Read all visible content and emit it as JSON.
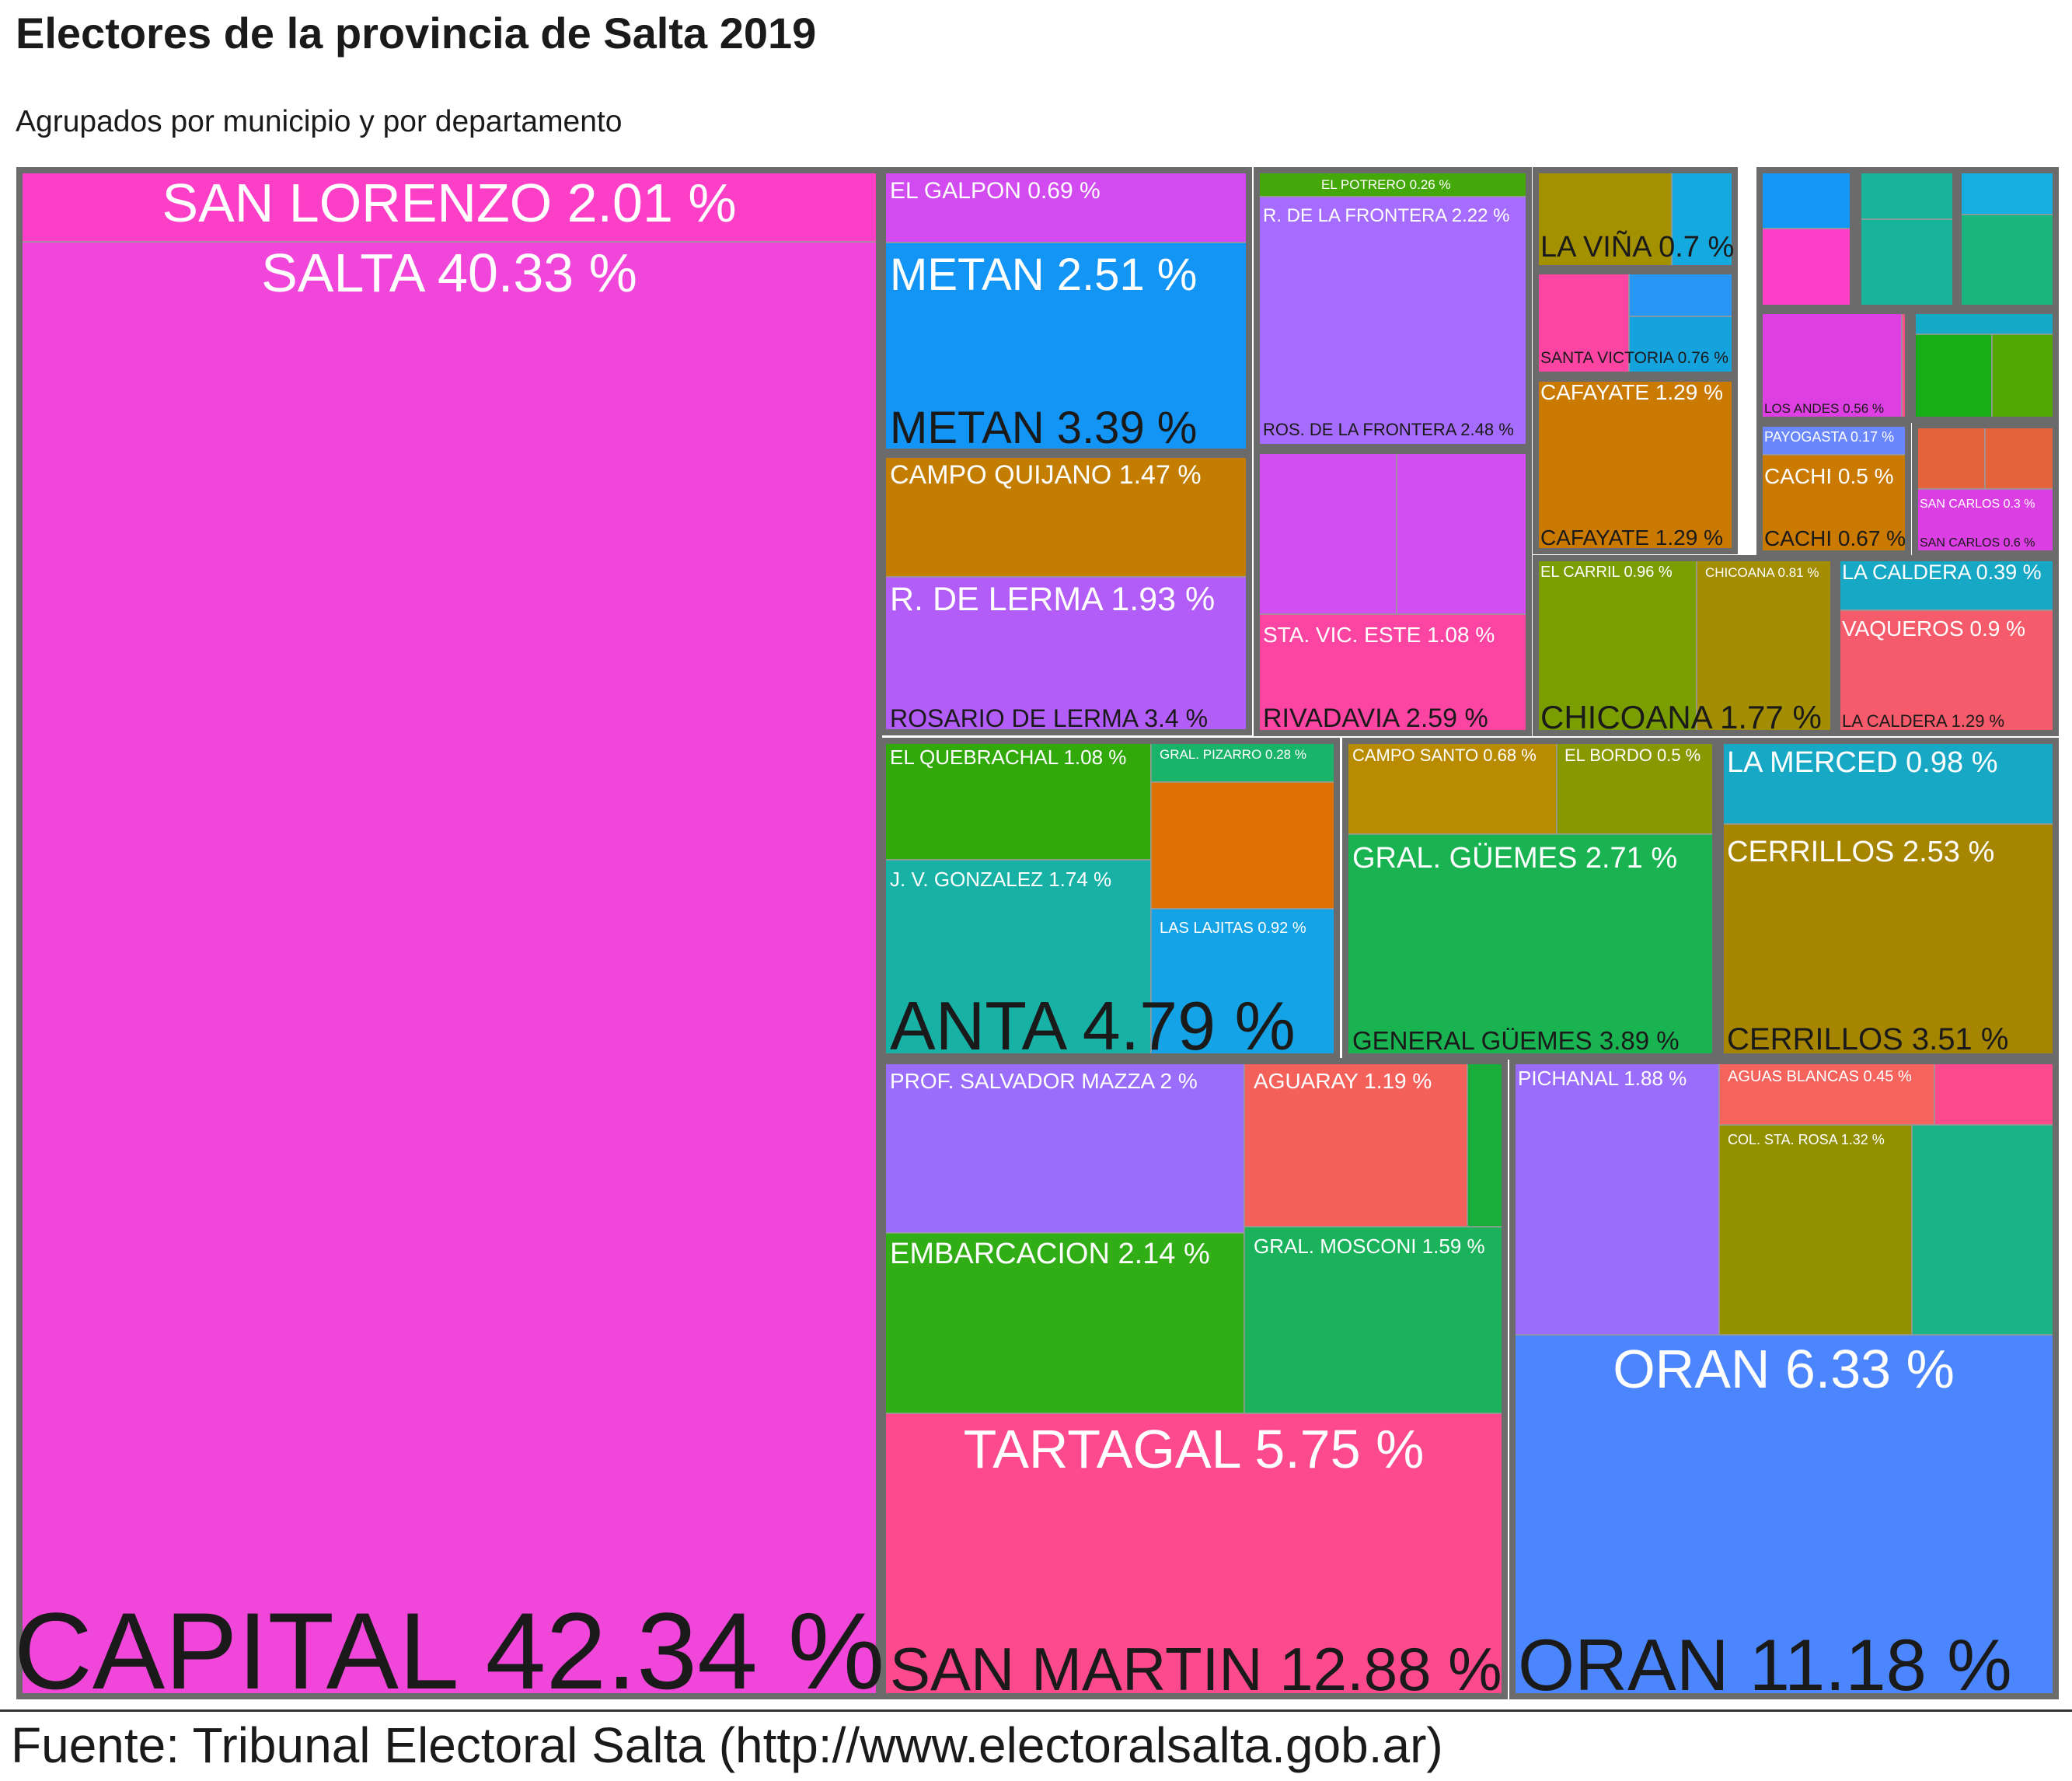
{
  "title": "Electores de la provincia de Salta 2019",
  "subtitle": "Agrupados por municipio y por departamento",
  "caption": "Fuente: Tribunal Electoral Salta (http://www.electoralsalta.gob.ar)",
  "colors": {
    "background": "#ffffff",
    "border": "#6b6b6b",
    "subdivider": "#9a9a9a",
    "text_light": "#ffffff",
    "text_dark": "#1a1a1a"
  },
  "chart_data": {
    "type": "treemap",
    "unit": "%",
    "departments": [
      {
        "name": "CAPITAL",
        "value": 42.34,
        "municipalities": [
          {
            "name": "SALTA",
            "value": 40.33,
            "color": "#F046D9"
          },
          {
            "name": "SAN LORENZO",
            "value": 2.01,
            "color": "#FC3FC6"
          }
        ]
      },
      {
        "name": "SAN MARTIN",
        "value": 12.88,
        "municipalities": [
          {
            "name": "TARTAGAL",
            "value": 5.75,
            "color": "#FC4A8D"
          },
          {
            "name": "PROF. SALVADOR MAZZA",
            "value": 2,
            "color": "#9A6DFB"
          },
          {
            "name": "EMBARCACION",
            "value": 2.14,
            "color": "#31AE16"
          },
          {
            "name": "AGUARAY",
            "value": 1.19,
            "color": "#F4615A"
          },
          {
            "name": "GRAL. MOSCONI",
            "value": 1.59,
            "color": "#1AB35C"
          },
          {
            "name": "",
            "value": null,
            "color": "#19AE3A"
          }
        ]
      },
      {
        "name": "ORAN",
        "value": 11.18,
        "municipalities": [
          {
            "name": "ORAN",
            "value": 6.33,
            "color": "#4C86FE"
          },
          {
            "name": "PICHANAL",
            "value": 1.88,
            "color": "#9A6DFB"
          },
          {
            "name": "AGUAS BLANCAS",
            "value": 0.45,
            "color": "#F4635C"
          },
          {
            "name": "",
            "value": null,
            "color": "#FC4A8D"
          },
          {
            "name": "COL. STA. ROSA",
            "value": 1.32,
            "color": "#939000"
          },
          {
            "name": "",
            "value": null,
            "color": "#18B485"
          }
        ]
      },
      {
        "name": "ANTA",
        "value": 4.79,
        "municipalities": [
          {
            "name": "EL QUEBRACHAL",
            "value": 1.08,
            "color": "#32A90A"
          },
          {
            "name": "J. V. GONZALEZ",
            "value": 1.74,
            "color": "#18B1A6"
          },
          {
            "name": "GRAL. PIZARRO",
            "value": 0.28,
            "color": "#1AB36A"
          },
          {
            "name": "",
            "value": null,
            "color": "#DF7002"
          },
          {
            "name": "LAS LAJITAS",
            "value": 0.92,
            "color": "#14A3E6"
          }
        ]
      },
      {
        "name": "GENERAL GÜEMES",
        "value": 3.89,
        "municipalities": [
          {
            "name": "CAMPO SANTO",
            "value": 0.68,
            "color": "#B98B00"
          },
          {
            "name": "EL BORDO",
            "value": 0.5,
            "color": "#879800"
          },
          {
            "name": "GRAL. GÜEMES",
            "value": 2.71,
            "color": "#1AB352"
          }
        ]
      },
      {
        "name": "CERRILLOS",
        "value": 3.51,
        "municipalities": [
          {
            "name": "LA MERCED",
            "value": 0.98,
            "color": "#17A8C5"
          },
          {
            "name": "CERRILLOS",
            "value": 2.53,
            "color": "#A68600"
          }
        ]
      },
      {
        "name": "METAN",
        "value": 3.39,
        "municipalities": [
          {
            "name": "EL GALPON",
            "value": 0.69,
            "color": "#7A9D00"
          },
          {
            "name": "",
            "value": null,
            "color": "#D24BF0"
          },
          {
            "name": "METAN",
            "value": 2.51,
            "color": "#1395F5"
          }
        ]
      },
      {
        "name": "ROSARIO DE LERMA",
        "value": 3.4,
        "municipalities": [
          {
            "name": "CAMPO QUIJANO",
            "value": 1.47,
            "color": "#C37D00"
          },
          {
            "name": "R. DE LERMA",
            "value": 1.93,
            "color": "#B35DF8"
          }
        ]
      },
      {
        "name": "RIVADAVIA",
        "value": 2.59,
        "municipalities": [
          {
            "name": "",
            "value": null,
            "color": "#D24EF0"
          },
          {
            "name": "",
            "value": null,
            "color": "#D24EF0"
          },
          {
            "name": "STA. VIC. ESTE",
            "value": 1.08,
            "color": "#FC45A2"
          }
        ]
      },
      {
        "name": "ROS. DE LA FRONTERA",
        "value": 2.48,
        "municipalities": [
          {
            "name": "EL POTRERO",
            "value": 0.26,
            "color": "#45A80A"
          },
          {
            "name": "R. DE LA FRONTERA",
            "value": 2.22,
            "color": "#A66CFD"
          }
        ]
      },
      {
        "name": "LA VIÑA",
        "value": 0.7,
        "municipalities": [
          {
            "name": "",
            "value": null,
            "color": "#A49100"
          },
          {
            "name": "",
            "value": null,
            "color": "#14A9DF"
          }
        ]
      },
      {
        "name": "SANTA VICTORIA",
        "value": 0.76,
        "municipalities": [
          {
            "name": "",
            "value": null,
            "color": "#FC45A2"
          },
          {
            "name": "",
            "value": null,
            "color": "#2896F5"
          },
          {
            "name": "",
            "value": null,
            "color": "#15A3DE"
          }
        ]
      },
      {
        "name": "CAFAYATE",
        "value": 1.29,
        "municipalities": [
          {
            "name": "CAFAYATE",
            "value": 1.29,
            "color": "#CA7A00"
          }
        ]
      },
      {
        "name": "CHICOANA",
        "value": 1.77,
        "municipalities": [
          {
            "name": "EL CARRIL",
            "value": 0.96,
            "color": "#7A9D00"
          },
          {
            "name": "CHICOANA",
            "value": 0.81,
            "color": "#A38D00"
          }
        ]
      },
      {
        "name": "LA CALDERA",
        "value": 1.29,
        "municipalities": [
          {
            "name": "LA CALDERA",
            "value": 0.39,
            "color": "#17A8C5"
          },
          {
            "name": "VAQUEROS",
            "value": 0.9,
            "color": "#F55B6A"
          }
        ]
      },
      {
        "name": "CACHI",
        "value": 0.67,
        "municipalities": [
          {
            "name": "PAYOGASTA",
            "value": 0.17,
            "color": "#6A87FC"
          },
          {
            "name": "CACHI",
            "value": 0.5,
            "color": "#CA7A00"
          }
        ]
      },
      {
        "name": "LOS ANDES",
        "value": 0.56,
        "municipalities": [
          {
            "name": "",
            "value": null,
            "color": "#DD3FE3"
          },
          {
            "name": "",
            "value": null,
            "color": "#F3508C"
          }
        ]
      },
      {
        "name": "SAN CARLOS",
        "value": 0.6,
        "municipalities": [
          {
            "name": "",
            "value": null,
            "color": "#E4633A"
          },
          {
            "name": "",
            "value": null,
            "color": "#E4633A"
          },
          {
            "name": "SAN CARLOS",
            "value": 0.3,
            "color": "#DB3FE3"
          }
        ]
      },
      {
        "name": "",
        "value": null,
        "municipalities": [
          {
            "name": "",
            "value": null,
            "color": "#1398F8"
          },
          {
            "name": "",
            "value": null,
            "color": "#FC3FC6"
          }
        ]
      },
      {
        "name": "",
        "value": null,
        "municipalities": [
          {
            "name": "",
            "value": null,
            "color": "#18B39B"
          },
          {
            "name": "",
            "value": null,
            "color": "#18B39B"
          }
        ]
      },
      {
        "name": "",
        "value": null,
        "municipalities": [
          {
            "name": "",
            "value": null,
            "color": "#16AEE0"
          },
          {
            "name": "",
            "value": null,
            "color": "#18B57E"
          }
        ]
      },
      {
        "name": "",
        "value": null,
        "municipalities": [
          {
            "name": "",
            "value": null,
            "color": "#15A9C8"
          },
          {
            "name": "",
            "value": null,
            "color": "#16AD16"
          },
          {
            "name": "",
            "value": null,
            "color": "#52A700"
          }
        ]
      }
    ]
  }
}
